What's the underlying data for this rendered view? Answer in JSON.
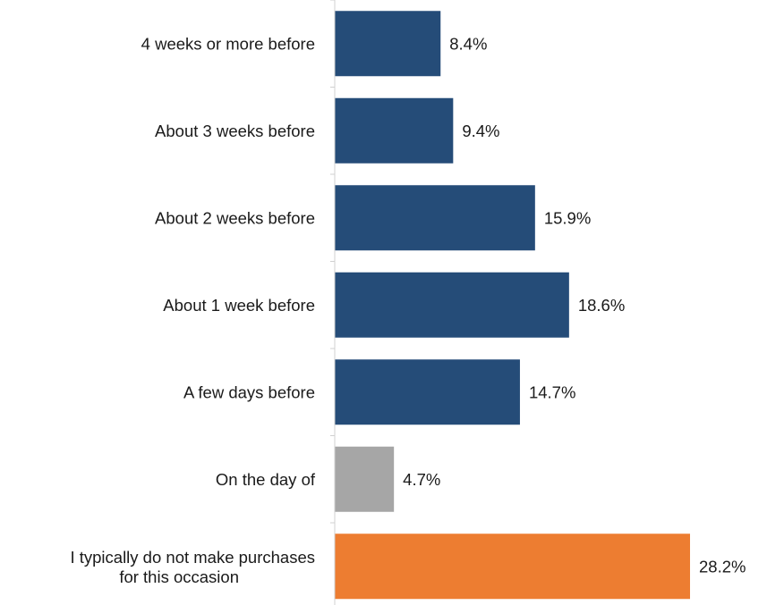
{
  "chart_data": {
    "type": "bar",
    "orientation": "horizontal",
    "categories": [
      "4 weeks or more before",
      "About 3 weeks before",
      "About 2 weeks before",
      "About 1 week before",
      "A few days before",
      "On the day of",
      "I typically do not make purchases for this occasion"
    ],
    "values": [
      8.4,
      9.4,
      15.9,
      18.6,
      14.7,
      4.7,
      28.2
    ],
    "data_labels": [
      "8.4%",
      "9.4%",
      "15.9%",
      "18.6%",
      "14.7%",
      "4.7%",
      "28.2%"
    ],
    "colors": [
      "#254c78",
      "#254c78",
      "#254c78",
      "#254c78",
      "#254c78",
      "#a6a6a6",
      "#ed7d31"
    ],
    "title": "",
    "xlabel": "",
    "ylabel": "",
    "xlim": [
      0,
      30
    ],
    "grid": false,
    "legend": "none"
  }
}
